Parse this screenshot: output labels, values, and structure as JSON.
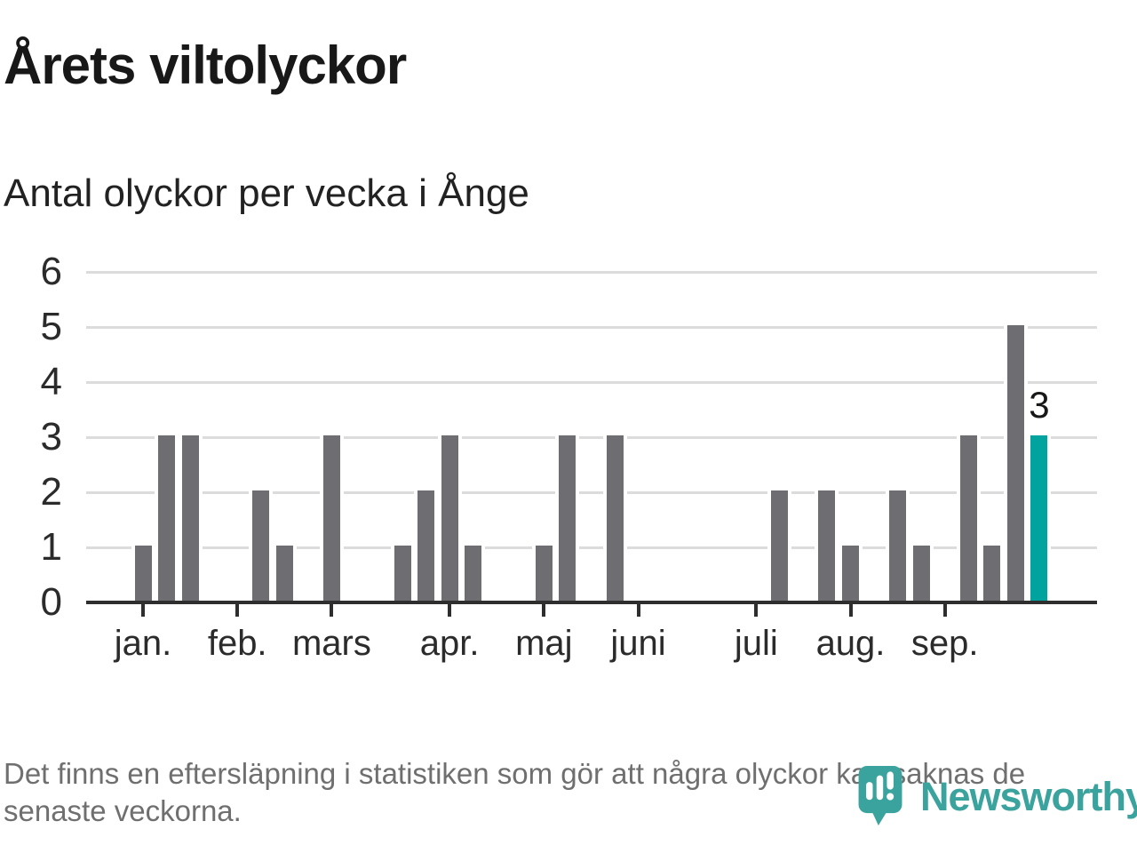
{
  "title": "Årets viltolyckor",
  "subtitle": "Antal olyckor per vecka i Ånge",
  "footnote": "Det finns en eftersläpning i statistiken som gör att några olyckor kan saknas de senaste veckorna.",
  "logo": {
    "wordmark": "Newsworthy",
    "mark": "newsworthy-pin-barchart-icon"
  },
  "colors": {
    "bar": "#6d6d72",
    "highlight": "#00a39e",
    "grid": "#dcdcdc",
    "axis": "#2e2e2e",
    "title_text": "#181818",
    "tick_text": "#2b2b2b",
    "footnote_text": "#6f6f6f",
    "logo_teal": "#3aa39d"
  },
  "chart_data": {
    "type": "bar",
    "title": "Årets viltolyckor",
    "subtitle": "Antal olyckor per vecka i Ånge",
    "x_unit": "vecka (week)",
    "ylabel": "",
    "xlabel": "",
    "ylim": [
      0,
      6
    ],
    "grid": true,
    "y_ticks": [
      0,
      1,
      2,
      3,
      4,
      5,
      6
    ],
    "values": [
      1,
      3,
      3,
      0,
      0,
      2,
      1,
      0,
      3,
      0,
      0,
      1,
      2,
      3,
      1,
      0,
      0,
      1,
      3,
      0,
      3,
      0,
      0,
      0,
      0,
      0,
      0,
      2,
      0,
      2,
      1,
      0,
      2,
      1,
      0,
      3,
      1,
      5,
      3
    ],
    "month_ticks": [
      {
        "week_index": 0,
        "label": "jan."
      },
      {
        "week_index": 4,
        "label": "feb."
      },
      {
        "week_index": 8,
        "label": "mars"
      },
      {
        "week_index": 13,
        "label": "apr."
      },
      {
        "week_index": 17,
        "label": "maj"
      },
      {
        "week_index": 21,
        "label": "juni"
      },
      {
        "week_index": 26,
        "label": "juli"
      },
      {
        "week_index": 30,
        "label": "aug."
      },
      {
        "week_index": 34,
        "label": "sep."
      },
      {
        "week_index": 38,
        "label": ""
      }
    ],
    "highlight_index": 38,
    "highlight_value_label": "3"
  }
}
